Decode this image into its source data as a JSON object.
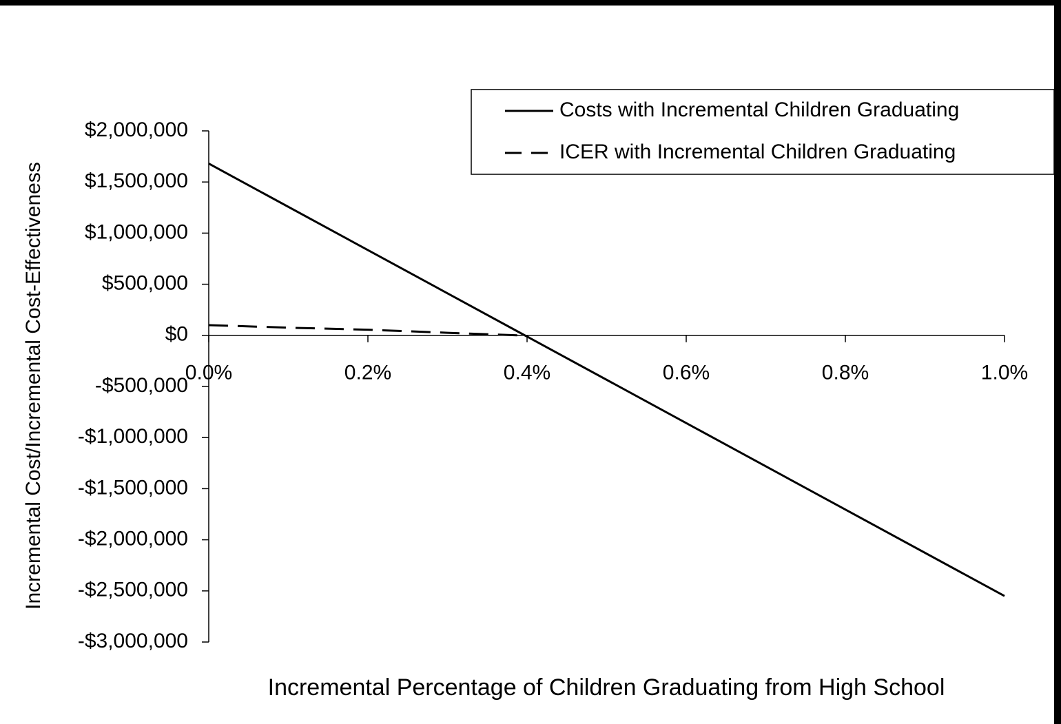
{
  "chart_data": {
    "type": "line",
    "x_label": "Incremental Percentage of Children Graduating from High School",
    "y_label": "Incremental Cost/Incremental Cost-Effectiveness",
    "xlim": [
      0,
      1.0
    ],
    "xticks": [
      {
        "value": 0,
        "label": "0.0%"
      },
      {
        "value": 0.2,
        "label": "0.2%"
      },
      {
        "value": 0.4,
        "label": "0.4%"
      },
      {
        "value": 0.6,
        "label": "0.6%"
      },
      {
        "value": 0.8,
        "label": "0.8%"
      },
      {
        "value": 1.0,
        "label": "1.0%"
      }
    ],
    "ylim": [
      -3000000,
      2000000
    ],
    "yticks": [
      {
        "value": 2000000,
        "label": "$2,000,000"
      },
      {
        "value": 1500000,
        "label": "$1,500,000"
      },
      {
        "value": 1000000,
        "label": "$1,000,000"
      },
      {
        "value": 500000,
        "label": "$500,000"
      },
      {
        "value": 0,
        "label": "$0"
      },
      {
        "value": -500000,
        "label": "-$500,000"
      },
      {
        "value": -1000000,
        "label": "-$1,000,000"
      },
      {
        "value": -1500000,
        "label": "-$1,500,000"
      },
      {
        "value": -2000000,
        "label": "-$2,000,000"
      },
      {
        "value": -2500000,
        "label": "-$2,500,000"
      },
      {
        "value": -3000000,
        "label": "-$3,000,000"
      }
    ],
    "legend_position": "upper right",
    "series": [
      {
        "name": "Costs with Incremental Children Graduating",
        "color": "#000000",
        "dash": "solid",
        "x": [
          0,
          1.0
        ],
        "values": [
          1680000,
          -2550000
        ]
      },
      {
        "name": "ICER with Incremental Children Graduating",
        "color": "#000000",
        "dash": "dashed",
        "x": [
          0,
          0.1,
          0.2,
          0.3,
          0.39
        ],
        "values": [
          100000,
          75000,
          55000,
          25000,
          0
        ]
      }
    ]
  }
}
